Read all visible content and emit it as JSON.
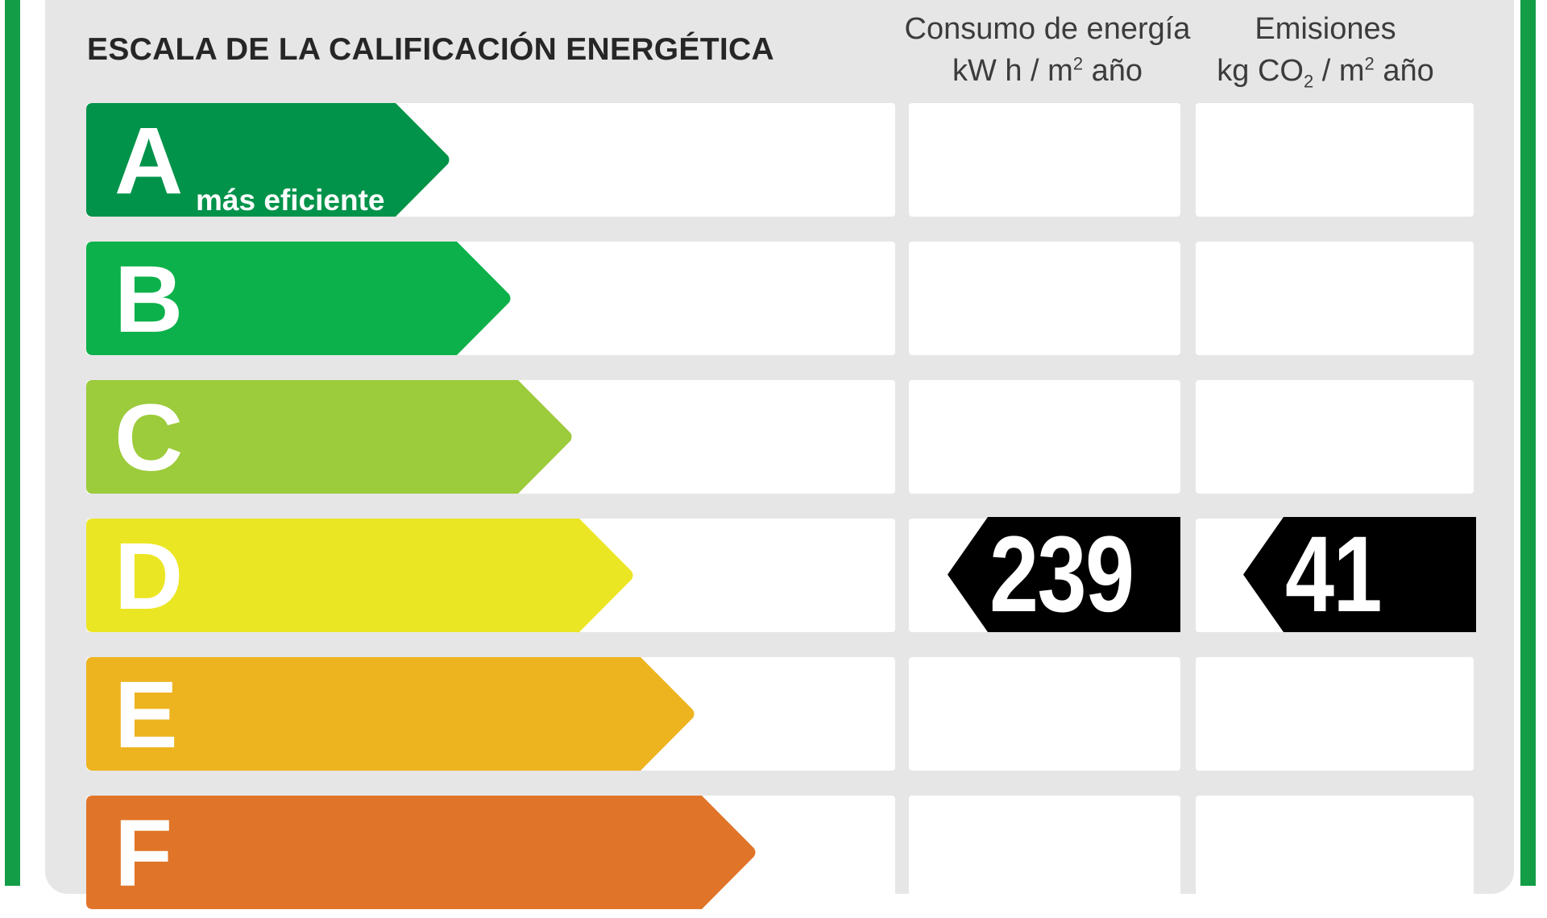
{
  "title": "ESCALA DE LA CALIFICACIÓN ENERGÉTICA",
  "columns": {
    "consumo": {
      "line1": "Consumo de energía",
      "unit_prefix": "kW h  / m",
      "unit_sup": "2",
      "unit_suffix": " año"
    },
    "emisiones": {
      "line1": "Emisiones",
      "unit_prefix": "kg CO",
      "unit_sub": "2",
      "unit_mid": "  / m",
      "unit_sup": "2",
      "unit_suffix": " año"
    }
  },
  "scale": [
    {
      "letter": "A",
      "subtitle": "más eficiente",
      "color": "#02934a"
    },
    {
      "letter": "B",
      "subtitle": "",
      "color": "#0db14b"
    },
    {
      "letter": "C",
      "subtitle": "",
      "color": "#9ccb3b"
    },
    {
      "letter": "D",
      "subtitle": "",
      "color": "#ebe624"
    },
    {
      "letter": "E",
      "subtitle": "",
      "color": "#eeb420"
    },
    {
      "letter": "F",
      "subtitle": "",
      "color": "#e07529"
    }
  ],
  "rating": {
    "grade": "D",
    "consumo_value": "239",
    "emisiones_value": "41",
    "marker_color": "#000000"
  }
}
